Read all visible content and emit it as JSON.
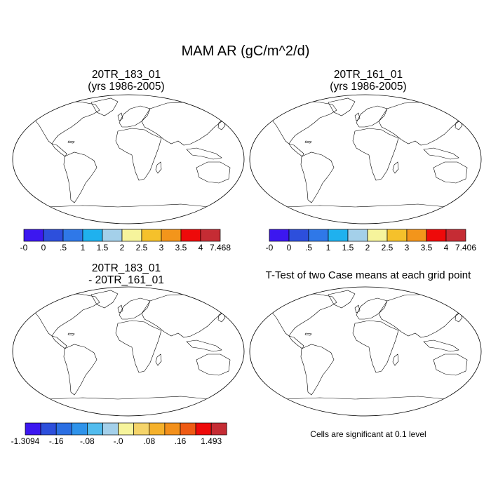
{
  "figure": {
    "title": "MAM AR (gC/m^2/d)"
  },
  "panels": [
    {
      "id": "p1",
      "title_line1": "20TR_183_01",
      "title_line2": "(yrs 1986-2005)"
    },
    {
      "id": "p2",
      "title_line1": "20TR_161_01",
      "title_line2": "(yrs 1986-2005)"
    },
    {
      "id": "p3",
      "title_line1": "20TR_183_01",
      "title_line2": "- 20TR_161_01"
    },
    {
      "id": "p4",
      "title_line1": "T-Test of two Case means at each grid point",
      "title_line2": ""
    }
  ],
  "colorbars": [
    {
      "id": "cb1",
      "labels": [
        "-0",
        "0",
        ".5",
        "1",
        "1.5",
        "2",
        "2.5",
        "3",
        "3.5",
        "4",
        "7.468"
      ],
      "colors": [
        "#3c17f0",
        "#2d4fdc",
        "#2f78e8",
        "#1fb1ee",
        "#a4d0ea",
        "#f6f49c",
        "#f5c12b",
        "#f3951b",
        "#ee0a0a",
        "#c52c34"
      ]
    },
    {
      "id": "cb2",
      "labels": [
        "-0",
        "0",
        ".5",
        "1",
        "1.5",
        "2",
        "2.5",
        "3",
        "3.5",
        "4",
        "7.406"
      ],
      "colors": [
        "#3c17f0",
        "#2d4fdc",
        "#2f78e8",
        "#1fb1ee",
        "#a4d0ea",
        "#f6f49c",
        "#f5c12b",
        "#f3951b",
        "#ee0a0a",
        "#c52c34"
      ]
    },
    {
      "id": "cb3",
      "labels": [
        "-1.3094",
        "-.16",
        "-.08",
        "-.0",
        ".08",
        ".16",
        "1.493"
      ],
      "label_positions": [
        0,
        2,
        4,
        6,
        8,
        10,
        12
      ],
      "colors": [
        "#3c17f0",
        "#2d4fdc",
        "#2b6fe3",
        "#2f93ea",
        "#52bcee",
        "#a4d0ea",
        "#f6f49c",
        "#f5d46a",
        "#f5b12b",
        "#f3901b",
        "#ef5b14",
        "#ee0a0a",
        "#c52c34"
      ]
    }
  ],
  "note": "Cells are significant at 0.1 level",
  "colors": {
    "ocean": "#ffffff",
    "land_base_abs": "#2d4fdc",
    "land_base_diff": "#f6f49c",
    "significant": "#ee0a0a",
    "coast": "#000000"
  }
}
